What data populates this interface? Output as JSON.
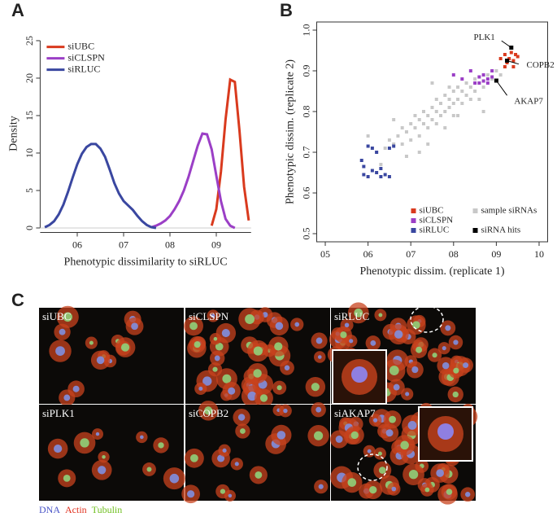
{
  "figure": {
    "panel_labels": [
      "A",
      "B",
      "C"
    ],
    "images": [
      "siUBC",
      "siCLSPN",
      "siRLUC",
      "siPLK1",
      "siCOPB2",
      "siAKAP7"
    ],
    "channels": [
      {
        "name": "DNA",
        "color": "#4a55c8"
      },
      {
        "name": "Actin",
        "color": "#e0301e"
      },
      {
        "name": "Tubulin",
        "color": "#6fbf1f"
      }
    ]
  },
  "chart_data": [
    {
      "type": "line",
      "xlabel": "Phenotypic dissimilarity to siRLUC",
      "ylabel": "Density",
      "x": [
        0.53,
        0.54,
        0.55,
        0.56,
        0.57,
        0.58,
        0.59,
        0.6,
        0.61,
        0.62,
        0.63,
        0.64,
        0.65,
        0.66,
        0.67,
        0.68,
        0.69,
        0.7,
        0.71,
        0.72,
        0.73,
        0.74,
        0.75,
        0.76,
        0.77,
        0.78,
        0.79,
        0.8,
        0.81,
        0.82,
        0.83,
        0.84,
        0.85,
        0.86,
        0.87,
        0.88,
        0.89,
        0.9,
        0.91,
        0.92,
        0.93,
        0.94,
        0.95,
        0.96,
        0.97
      ],
      "series": [
        {
          "name": "siUBC",
          "color": "#d93a1e",
          "values": [
            null,
            null,
            null,
            null,
            null,
            null,
            null,
            null,
            null,
            null,
            null,
            null,
            null,
            null,
            null,
            null,
            null,
            null,
            null,
            null,
            null,
            null,
            null,
            null,
            null,
            null,
            null,
            null,
            null,
            null,
            null,
            null,
            null,
            null,
            null,
            null,
            0.3,
            2.5,
            7.5,
            14.5,
            19.8,
            19.5,
            13.0,
            5.5,
            1.0
          ]
        },
        {
          "name": "siCLSPN",
          "color": "#9b3fc6",
          "values": [
            null,
            null,
            null,
            null,
            null,
            null,
            null,
            null,
            null,
            null,
            null,
            null,
            null,
            null,
            null,
            null,
            null,
            null,
            null,
            null,
            null,
            null,
            null,
            0.1,
            0.3,
            0.6,
            1.0,
            1.6,
            2.5,
            3.6,
            5.0,
            6.8,
            8.9,
            11.0,
            12.6,
            12.5,
            10.5,
            7.0,
            3.6,
            1.2,
            0.3,
            0,
            null,
            null,
            null
          ]
        },
        {
          "name": "siRLUC",
          "color": "#3a47a0",
          "values": [
            0.1,
            0.4,
            0.9,
            1.8,
            3.1,
            4.8,
            6.7,
            8.5,
            9.9,
            10.8,
            11.2,
            11.2,
            10.6,
            9.5,
            7.8,
            6.0,
            4.6,
            3.6,
            3.0,
            2.4,
            1.6,
            0.9,
            0.4,
            0.1,
            0,
            null,
            null,
            null,
            null,
            null,
            null,
            null,
            null,
            null,
            null,
            null,
            null,
            null,
            null,
            null,
            null,
            null,
            null,
            null,
            null
          ]
        }
      ],
      "xlim": [
        0.52,
        0.975
      ],
      "ylim": [
        -0.6,
        25.8
      ],
      "xticks": [
        {
          "value": 0.6,
          "label": "06"
        },
        {
          "value": 0.7,
          "label": "07"
        },
        {
          "value": 0.8,
          "label": "08"
        },
        {
          "value": 0.9,
          "label": "09"
        }
      ],
      "yticks": [
        0,
        5,
        10,
        15,
        20,
        25
      ],
      "legend": "upper left"
    },
    {
      "type": "scatter",
      "xlabel": "Phenotypic dissim. (replicate 1)",
      "ylabel": "Phenotypic dissim. (replicate 2)",
      "series": [
        {
          "name": "sample siRNAs",
          "color": "#c8c8c8",
          "x": [
            0.62,
            0.64,
            0.65,
            0.66,
            0.67,
            0.68,
            0.68,
            0.69,
            0.7,
            0.7,
            0.71,
            0.71,
            0.72,
            0.72,
            0.73,
            0.73,
            0.74,
            0.74,
            0.75,
            0.75,
            0.76,
            0.76,
            0.76,
            0.77,
            0.77,
            0.78,
            0.78,
            0.79,
            0.79,
            0.8,
            0.8,
            0.8,
            0.81,
            0.81,
            0.82,
            0.82,
            0.83,
            0.83,
            0.84,
            0.84,
            0.85,
            0.85,
            0.86,
            0.87,
            0.88,
            0.89,
            0.9,
            0.91,
            0.6,
            0.63,
            0.69,
            0.78,
            0.87,
            0.75,
            0.66,
            0.72,
            0.86,
            0.74,
            0.81,
            0.79
          ],
          "y": [
            0.7,
            0.71,
            0.73,
            0.72,
            0.74,
            0.72,
            0.76,
            0.75,
            0.73,
            0.77,
            0.76,
            0.79,
            0.74,
            0.78,
            0.77,
            0.8,
            0.76,
            0.79,
            0.78,
            0.81,
            0.77,
            0.8,
            0.83,
            0.79,
            0.82,
            0.8,
            0.84,
            0.81,
            0.83,
            0.79,
            0.82,
            0.85,
            0.83,
            0.86,
            0.82,
            0.85,
            0.84,
            0.87,
            0.83,
            0.86,
            0.85,
            0.88,
            0.87,
            0.86,
            0.89,
            0.88,
            0.9,
            0.89,
            0.74,
            0.67,
            0.69,
            0.76,
            0.8,
            0.87,
            0.78,
            0.7,
            0.83,
            0.72,
            0.79,
            0.86
          ]
        },
        {
          "name": "siUBC",
          "color": "#d93a1e",
          "x": [
            0.91,
            0.92,
            0.925,
            0.93,
            0.935,
            0.94,
            0.945,
            0.95,
            0.92,
            0.94
          ],
          "y": [
            0.93,
            0.94,
            0.92,
            0.93,
            0.945,
            0.925,
            0.94,
            0.935,
            0.91,
            0.91
          ]
        },
        {
          "name": "siCLSPN",
          "color": "#9b3fc6",
          "x": [
            0.8,
            0.82,
            0.84,
            0.85,
            0.86,
            0.87,
            0.87,
            0.88,
            0.88,
            0.89,
            0.89,
            0.86
          ],
          "y": [
            0.89,
            0.88,
            0.9,
            0.87,
            0.885,
            0.875,
            0.89,
            0.87,
            0.88,
            0.885,
            0.9,
            0.87
          ]
        },
        {
          "name": "siRLUC",
          "color": "#3a47a0",
          "x": [
            0.585,
            0.59,
            0.59,
            0.6,
            0.61,
            0.61,
            0.62,
            0.62,
            0.63,
            0.64,
            0.65,
            0.63,
            0.65,
            0.66,
            0.6
          ],
          "y": [
            0.68,
            0.665,
            0.645,
            0.64,
            0.655,
            0.71,
            0.7,
            0.65,
            0.64,
            0.645,
            0.64,
            0.66,
            0.71,
            0.715,
            0.715
          ]
        },
        {
          "name": "siRNA hits",
          "color": "#000000",
          "x": [
            0.935,
            0.925,
            0.9
          ],
          "y": [
            0.957,
            0.925,
            0.876
          ],
          "point_labels": [
            "PLK1",
            "COPB2",
            "AKAP7"
          ]
        }
      ],
      "xlim": [
        0.48,
        1.02
      ],
      "ylim": [
        0.48,
        1.02
      ],
      "xticks": [
        {
          "value": 0.5,
          "label": "05"
        },
        {
          "value": 0.6,
          "label": "06"
        },
        {
          "value": 0.7,
          "label": "07"
        },
        {
          "value": 0.8,
          "label": "08"
        },
        {
          "value": 0.9,
          "label": "09"
        },
        {
          "value": 1,
          "label": "10"
        }
      ],
      "yticks": [
        0.5,
        0.6,
        0.7,
        0.8,
        0.9,
        {
          "value": 1,
          "label": "1.0"
        }
      ],
      "legend": "lower right"
    }
  ]
}
